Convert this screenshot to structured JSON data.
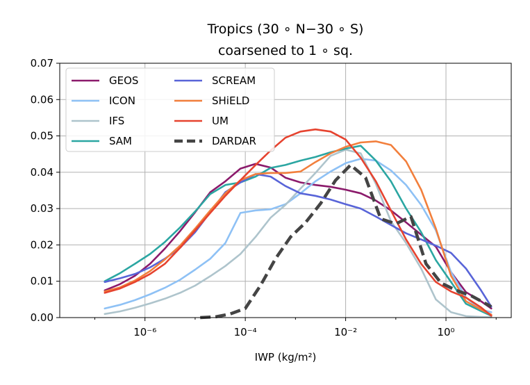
{
  "chart_data": {
    "type": "line",
    "title_line1": "Tropics (30 ∘ N−30 ∘ S)",
    "title_line2": "coarsened to 1 ∘ sq.",
    "xlabel": "IWP (kg/m²)",
    "ylabel": "",
    "x_scale": "log",
    "xlim": [
      2e-08,
      20
    ],
    "ylim": [
      0,
      0.07
    ],
    "grid": true,
    "legend_position": "upper-left",
    "y_ticks": [
      "0.00",
      "0.01",
      "0.02",
      "0.03",
      "0.04",
      "0.05",
      "0.06",
      "0.07"
    ],
    "y_tick_values": [
      0,
      0.01,
      0.02,
      0.03,
      0.04,
      0.05,
      0.06,
      0.07
    ],
    "x_ticks": [
      "10⁻⁶",
      "10⁻⁴",
      "10⁻²",
      "10⁰"
    ],
    "x_tick_values": [
      1e-06,
      0.0001,
      0.01,
      1
    ],
    "series": [
      {
        "name": "GEOS",
        "color": "#8b1a6b",
        "dash": false,
        "points": [
          [
            1.58e-07,
            0.0075
          ],
          [
            3.16e-07,
            0.0092
          ],
          [
            6.3e-07,
            0.0115
          ],
          [
            1.26e-06,
            0.0148
          ],
          [
            2.5e-06,
            0.019
          ],
          [
            5e-06,
            0.0238
          ],
          [
            1e-05,
            0.029
          ],
          [
            2e-05,
            0.0345
          ],
          [
            4e-05,
            0.0375
          ],
          [
            8e-05,
            0.041
          ],
          [
            0.00016,
            0.0423
          ],
          [
            0.00032,
            0.0413
          ],
          [
            0.00063,
            0.0385
          ],
          [
            0.00126,
            0.0372
          ],
          [
            0.0025,
            0.0365
          ],
          [
            0.005,
            0.036
          ],
          [
            0.01,
            0.0352
          ],
          [
            0.02,
            0.0342
          ],
          [
            0.04,
            0.0322
          ],
          [
            0.08,
            0.0295
          ],
          [
            0.16,
            0.0262
          ],
          [
            0.32,
            0.0228
          ],
          [
            0.63,
            0.0195
          ],
          [
            1.26,
            0.0125
          ],
          [
            2.5,
            0.007
          ],
          [
            5,
            0.0045
          ],
          [
            8,
            0.0025
          ]
        ]
      },
      {
        "name": "ICON",
        "color": "#8ec1f5",
        "dash": false,
        "points": [
          [
            1.58e-07,
            0.0025
          ],
          [
            3.16e-07,
            0.0035
          ],
          [
            6.3e-07,
            0.0048
          ],
          [
            1.26e-06,
            0.0064
          ],
          [
            2.5e-06,
            0.0082
          ],
          [
            5e-06,
            0.0104
          ],
          [
            1e-05,
            0.0132
          ],
          [
            2e-05,
            0.0162
          ],
          [
            4e-05,
            0.0205
          ],
          [
            8e-05,
            0.0288
          ],
          [
            0.00016,
            0.0295
          ],
          [
            0.00032,
            0.0298
          ],
          [
            0.00063,
            0.0312
          ],
          [
            0.00126,
            0.0342
          ],
          [
            0.0025,
            0.0375
          ],
          [
            0.005,
            0.0402
          ],
          [
            0.01,
            0.0425
          ],
          [
            0.02,
            0.0437
          ],
          [
            0.04,
            0.0432
          ],
          [
            0.08,
            0.0405
          ],
          [
            0.16,
            0.0365
          ],
          [
            0.32,
            0.031
          ],
          [
            0.63,
            0.024
          ],
          [
            1.26,
            0.0125
          ],
          [
            2.5,
            0.0055
          ],
          [
            5,
            0.0022
          ],
          [
            8,
            0.0015
          ]
        ]
      },
      {
        "name": "IFS",
        "color": "#aec4cc",
        "dash": false,
        "points": [
          [
            1.58e-07,
            0.001
          ],
          [
            3.16e-07,
            0.0017
          ],
          [
            6.3e-07,
            0.0027
          ],
          [
            1.26e-06,
            0.0039
          ],
          [
            2.5e-06,
            0.0052
          ],
          [
            5e-06,
            0.0068
          ],
          [
            1e-05,
            0.0088
          ],
          [
            2e-05,
            0.0114
          ],
          [
            4e-05,
            0.0142
          ],
          [
            8e-05,
            0.0175
          ],
          [
            0.00016,
            0.0222
          ],
          [
            0.00032,
            0.0275
          ],
          [
            0.00063,
            0.031
          ],
          [
            0.00126,
            0.0355
          ],
          [
            0.0025,
            0.0398
          ],
          [
            0.005,
            0.0445
          ],
          [
            0.01,
            0.0462
          ],
          [
            0.02,
            0.0452
          ],
          [
            0.04,
            0.0368
          ],
          [
            0.08,
            0.0265
          ],
          [
            0.16,
            0.0205
          ],
          [
            0.32,
            0.0135
          ],
          [
            0.63,
            0.005
          ],
          [
            1.26,
            0.0015
          ],
          [
            2.5,
            0.0004
          ],
          [
            5,
            0.0002
          ],
          [
            8,
            0.0001
          ]
        ]
      },
      {
        "name": "SAM",
        "color": "#2ba6a2",
        "dash": false,
        "points": [
          [
            1.58e-07,
            0.01
          ],
          [
            3.16e-07,
            0.0122
          ],
          [
            6.3e-07,
            0.0148
          ],
          [
            1.26e-06,
            0.0175
          ],
          [
            2.5e-06,
            0.0208
          ],
          [
            5e-06,
            0.0248
          ],
          [
            1e-05,
            0.0292
          ],
          [
            2e-05,
            0.034
          ],
          [
            4e-05,
            0.0365
          ],
          [
            8e-05,
            0.0372
          ],
          [
            0.00016,
            0.0388
          ],
          [
            0.00032,
            0.0412
          ],
          [
            0.00063,
            0.042
          ],
          [
            0.00126,
            0.0432
          ],
          [
            0.0025,
            0.0442
          ],
          [
            0.005,
            0.0455
          ],
          [
            0.01,
            0.0465
          ],
          [
            0.02,
            0.0473
          ],
          [
            0.04,
            0.0432
          ],
          [
            0.08,
            0.0375
          ],
          [
            0.16,
            0.03
          ],
          [
            0.32,
            0.0235
          ],
          [
            0.63,
            0.0158
          ],
          [
            1.26,
            0.0098
          ],
          [
            2.5,
            0.0038
          ],
          [
            5,
            0.0018
          ],
          [
            8,
            0.0005
          ]
        ]
      },
      {
        "name": "SCREAM",
        "color": "#5864d8",
        "dash": false,
        "points": [
          [
            1.58e-07,
            0.0098
          ],
          [
            3.16e-07,
            0.0108
          ],
          [
            6.3e-07,
            0.012
          ],
          [
            1.26e-06,
            0.0138
          ],
          [
            2.5e-06,
            0.0162
          ],
          [
            5e-06,
            0.0192
          ],
          [
            1e-05,
            0.0235
          ],
          [
            2e-05,
            0.029
          ],
          [
            4e-05,
            0.0345
          ],
          [
            8e-05,
            0.0372
          ],
          [
            0.00016,
            0.0395
          ],
          [
            0.00032,
            0.0388
          ],
          [
            0.00063,
            0.0362
          ],
          [
            0.00126,
            0.0342
          ],
          [
            0.0025,
            0.0335
          ],
          [
            0.005,
            0.0325
          ],
          [
            0.01,
            0.0312
          ],
          [
            0.02,
            0.03
          ],
          [
            0.04,
            0.0278
          ],
          [
            0.08,
            0.0255
          ],
          [
            0.16,
            0.0232
          ],
          [
            0.32,
            0.0215
          ],
          [
            0.63,
            0.0198
          ],
          [
            1.26,
            0.0178
          ],
          [
            2.5,
            0.0135
          ],
          [
            5,
            0.0075
          ],
          [
            8,
            0.003
          ]
        ]
      },
      {
        "name": "SHiELD",
        "color": "#f27f3c",
        "dash": false,
        "points": [
          [
            1.58e-07,
            0.0072
          ],
          [
            3.16e-07,
            0.0083
          ],
          [
            6.3e-07,
            0.0102
          ],
          [
            1.26e-06,
            0.0128
          ],
          [
            2.5e-06,
            0.016
          ],
          [
            5e-06,
            0.0198
          ],
          [
            1e-05,
            0.0245
          ],
          [
            2e-05,
            0.0295
          ],
          [
            4e-05,
            0.0342
          ],
          [
            8e-05,
            0.0378
          ],
          [
            0.00016,
            0.0395
          ],
          [
            0.00032,
            0.0398
          ],
          [
            0.00063,
            0.0398
          ],
          [
            0.00126,
            0.0402
          ],
          [
            0.0025,
            0.0428
          ],
          [
            0.005,
            0.0452
          ],
          [
            0.01,
            0.047
          ],
          [
            0.02,
            0.0482
          ],
          [
            0.04,
            0.0485
          ],
          [
            0.08,
            0.0475
          ],
          [
            0.16,
            0.043
          ],
          [
            0.32,
            0.0352
          ],
          [
            0.63,
            0.0245
          ],
          [
            1.26,
            0.0115
          ],
          [
            2.5,
            0.0045
          ],
          [
            5,
            0.0022
          ],
          [
            8,
            0.0008
          ]
        ]
      },
      {
        "name": "UM",
        "color": "#e6432f",
        "dash": false,
        "points": [
          [
            1.58e-07,
            0.0068
          ],
          [
            3.16e-07,
            0.008
          ],
          [
            6.3e-07,
            0.0098
          ],
          [
            1.26e-06,
            0.012
          ],
          [
            2.5e-06,
            0.0148
          ],
          [
            5e-06,
            0.0192
          ],
          [
            1e-05,
            0.024
          ],
          [
            2e-05,
            0.0288
          ],
          [
            4e-05,
            0.0335
          ],
          [
            8e-05,
            0.0378
          ],
          [
            0.00016,
            0.042
          ],
          [
            0.00032,
            0.046
          ],
          [
            0.00063,
            0.0495
          ],
          [
            0.00126,
            0.0512
          ],
          [
            0.0025,
            0.0518
          ],
          [
            0.005,
            0.0512
          ],
          [
            0.01,
            0.049
          ],
          [
            0.02,
            0.044
          ],
          [
            0.04,
            0.0375
          ],
          [
            0.08,
            0.0295
          ],
          [
            0.16,
            0.0215
          ],
          [
            0.32,
            0.0148
          ],
          [
            0.63,
            0.0098
          ],
          [
            1.26,
            0.0072
          ],
          [
            2.5,
            0.0055
          ],
          [
            5,
            0.0028
          ],
          [
            8,
            0.0005
          ]
        ]
      },
      {
        "name": "DARDAR",
        "color": "#444444",
        "dash": true,
        "points": [
          [
            1.26e-05,
            0.0
          ],
          [
            2.5e-05,
            0.0002
          ],
          [
            5e-05,
            0.001
          ],
          [
            0.0001,
            0.0025
          ],
          [
            0.0002,
            0.0088
          ],
          [
            0.0004,
            0.0162
          ],
          [
            0.0008,
            0.0222
          ],
          [
            0.0016,
            0.0262
          ],
          [
            0.0032,
            0.0315
          ],
          [
            0.0063,
            0.0378
          ],
          [
            0.0126,
            0.042
          ],
          [
            0.025,
            0.0385
          ],
          [
            0.05,
            0.0272
          ],
          [
            0.1,
            0.0258
          ],
          [
            0.2,
            0.0278
          ],
          [
            0.4,
            0.0148
          ],
          [
            0.8,
            0.0095
          ],
          [
            1.6,
            0.0075
          ],
          [
            3.2,
            0.006
          ],
          [
            8,
            0.003
          ]
        ]
      }
    ]
  }
}
